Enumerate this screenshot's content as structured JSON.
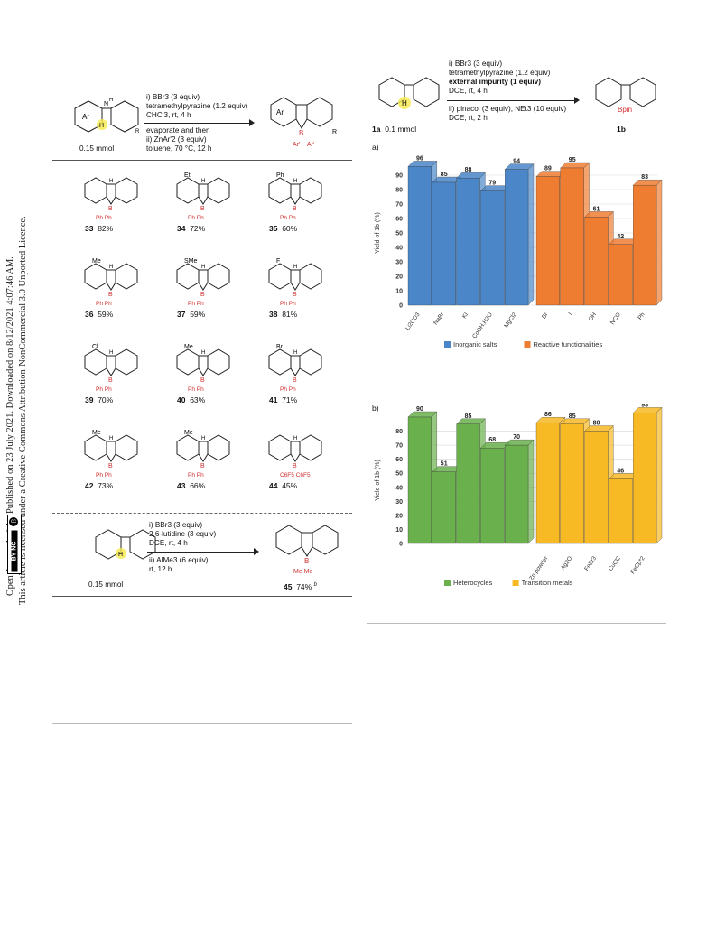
{
  "sidebar": {
    "line1": "Open Access Article. Published on 23 July 2021. Downloaded on 8/12/2021 4:07:46 AM.",
    "line2": "This article is licensed under a Creative Commons Attribution-NonCommercial 3.0 Unported Licence.",
    "badge_cc": "cc",
    "badge_by": "BY-NC"
  },
  "scheme_top": {
    "reagent_label": "Ar",
    "amount": "0.15 mmol",
    "cond1": "i) BBr3 (3 equiv)",
    "cond2": "tetramethylpyrazine (1.2 equiv)",
    "cond3": "CHCl3, rt, 4 h",
    "cond4": "evaporate and then",
    "cond5": "ii) ZnAr'2 (3 equiv)",
    "cond6": "toluene, 70 °C, 12 h",
    "substituent_r": "R"
  },
  "products": [
    {
      "num": "33",
      "yield": "82%",
      "sub": "",
      "boron": "Ph  Ph"
    },
    {
      "num": "34",
      "yield": "72%",
      "sub": "Et",
      "boron": "Ph  Ph"
    },
    {
      "num": "35",
      "yield": "60%",
      "sub": "Ph",
      "boron": "Ph  Ph"
    },
    {
      "num": "36",
      "yield": "59%",
      "sub": "Me",
      "boron": "Ph  Ph"
    },
    {
      "num": "37",
      "yield": "59%",
      "sub": "SMe",
      "boron": "Ph  Ph"
    },
    {
      "num": "38",
      "yield": "81%",
      "sub": "F",
      "boron": "Ph  Ph"
    },
    {
      "num": "39",
      "yield": "70%",
      "sub": "Cl",
      "boron": "Ph  Ph"
    },
    {
      "num": "40",
      "yield": "63%",
      "sub": "Me",
      "boron": "Ph  Ph"
    },
    {
      "num": "41",
      "yield": "71%",
      "sub": "Br",
      "boron": "Ph  Ph"
    },
    {
      "num": "42",
      "yield": "73%",
      "sub": "Me",
      "boron": "Ph  Ph"
    },
    {
      "num": "43",
      "yield": "66%",
      "sub": "Me",
      "boron": "Ph  Ph"
    },
    {
      "num": "44",
      "yield": "45%",
      "sub": "",
      "boron": "C6F5 C6F5"
    }
  ],
  "scheme_bottom": {
    "amount": "0.15 mmol",
    "cond1": "i) BBr3 (3 equiv)",
    "cond2": "2,6-lutidine (3 equiv)",
    "cond3": "DCE, rt, 4 h",
    "cond4": "ii) AlMe3 (6 equiv)",
    "cond5": "rt, 12 h",
    "product_num": "45",
    "product_yield": "74%",
    "product_note": "b",
    "boron": "Me  Me"
  },
  "scheme_right": {
    "cond1": "i) BBr3 (3 equiv)",
    "cond2": "tetramethylpyrazine (1.2 equiv)",
    "cond3": "external impurity (1 equiv)",
    "cond4": "DCE, rt, 4 h",
    "cond5": "ii) pinacol (3 equiv), NEt3 (10 equiv)",
    "cond6": "DCE, rt, 2 h",
    "sm_label": "1a",
    "sm_amount": "0.1 mmol",
    "prod_label": "1b",
    "prod_group": "Bpin"
  },
  "chart_data": [
    {
      "type": "bar",
      "panel": "a)",
      "ylabel": "Yield of 1b (%)",
      "ylim": [
        0,
        100
      ],
      "yticks": [
        "0",
        "10",
        "20",
        "30",
        "40",
        "50",
        "60",
        "70",
        "80",
        "90"
      ],
      "categories": [
        "Li2CO3",
        "NaBr",
        "KI",
        "CoOH.H2O",
        "MgCl2",
        "Br",
        "I",
        "OH",
        "NCO",
        "Ph"
      ],
      "series": [
        {
          "name": "Inorganic salts",
          "color": "#4a86c8",
          "values": [
            96,
            85,
            88,
            79,
            94,
            null,
            null,
            null,
            null,
            null
          ]
        },
        {
          "name": "Reactive functionalities",
          "color": "#ef7d31",
          "values": [
            null,
            null,
            null,
            null,
            null,
            89,
            95,
            61,
            42,
            83
          ]
        }
      ],
      "legend": "bottom"
    },
    {
      "type": "bar",
      "panel": "b)",
      "ylabel": "Yield of 1b (%)",
      "ylim": [
        0,
        90
      ],
      "yticks": [
        "0",
        "10",
        "20",
        "30",
        "40",
        "50",
        "60",
        "70",
        "80"
      ],
      "categories": [
        "",
        "",
        "",
        "",
        "",
        "Zn powder",
        "Ag2O",
        "FeBr3",
        "CuCl2",
        "FeCp*2"
      ],
      "series": [
        {
          "name": "Heterocycles",
          "color": "#6ab04c",
          "values": [
            90,
            51,
            85,
            68,
            70,
            null,
            null,
            null,
            null,
            null
          ]
        },
        {
          "name": "Transition metals",
          "color": "#f7b924",
          "values": [
            null,
            null,
            null,
            null,
            null,
            86,
            85,
            80,
            46,
            93
          ]
        }
      ],
      "legend": "bottom"
    }
  ]
}
